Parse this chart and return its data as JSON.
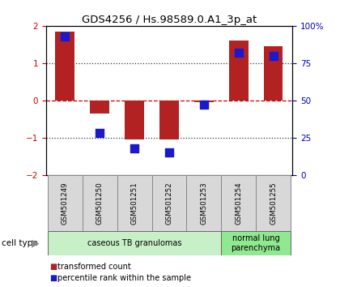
{
  "title": "GDS4256 / Hs.98589.0.A1_3p_at",
  "samples": [
    "GSM501249",
    "GSM501250",
    "GSM501251",
    "GSM501252",
    "GSM501253",
    "GSM501254",
    "GSM501255"
  ],
  "transformed_counts": [
    1.85,
    -0.35,
    -1.05,
    -1.05,
    -0.05,
    1.6,
    1.45
  ],
  "percentile_ranks": [
    93,
    28,
    18,
    15,
    47,
    82,
    80
  ],
  "ylim": [
    -2,
    2
  ],
  "yticks_left": [
    -2,
    -1,
    0,
    1,
    2
  ],
  "yticks_right": [
    0,
    25,
    50,
    75,
    100
  ],
  "cell_types": [
    {
      "label": "caseous TB granulomas",
      "indices": [
        0,
        1,
        2,
        3,
        4
      ],
      "color": "#c8f0c8"
    },
    {
      "label": "normal lung\nparenchyma",
      "indices": [
        5,
        6
      ],
      "color": "#90e890"
    }
  ],
  "bar_color": "#b22222",
  "dot_color": "#1a1acd",
  "zero_line_color": "#cc0000",
  "dotted_line_color": "#333333",
  "bg_color": "#ffffff",
  "legend_red_label": "transformed count",
  "legend_blue_label": "percentile rank within the sample",
  "left_tick_color": "#cc0000",
  "right_tick_color": "#0000bb",
  "bar_width": 0.55,
  "dot_size": 55,
  "cell_type_label": "cell type",
  "sample_box_color": "#d8d8d8",
  "sample_box_edge": "#888888"
}
